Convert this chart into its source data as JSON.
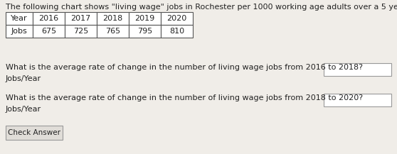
{
  "title": "The following chart shows \"living wage\" jobs in Rochester per 1000 working age adults over a 5 year period.",
  "table_headers": [
    "Year",
    "2016",
    "2017",
    "2018",
    "2019",
    "2020"
  ],
  "table_row": [
    "Jobs",
    "675",
    "725",
    "765",
    "795",
    "810"
  ],
  "question1": "What is the average rate of change in the number of living wage jobs from 2016 to 2018?",
  "question2": "What is the average rate of change in the number of living wage jobs from 2018 to 2020?",
  "unit_label": "Jobs/Year",
  "button_label": "Check Answer",
  "bg_color": "#f0ede8",
  "table_border_color": "#555555",
  "text_color": "#222222",
  "box_color": "#e0ddd8",
  "box_border": "#999999",
  "font_size_title": 8.0,
  "font_size_table": 8.0,
  "font_size_question": 8.0,
  "font_size_unit": 8.0,
  "font_size_button": 7.5
}
